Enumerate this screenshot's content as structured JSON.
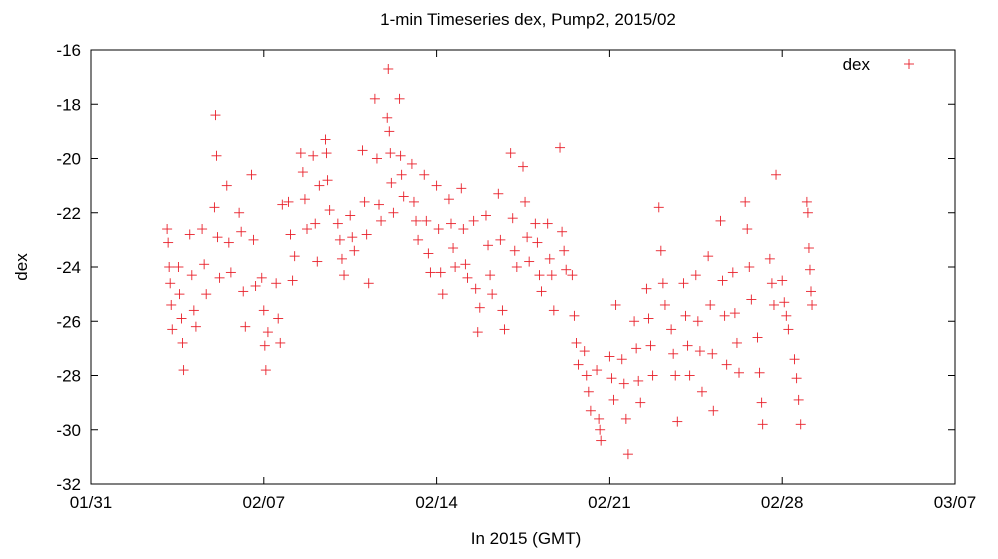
{
  "chart_data": {
    "type": "scatter",
    "title": "1-min Timeseries dex, Pump2, 2015/02",
    "xlabel": "In 2015 (GMT)",
    "ylabel": "dex",
    "x_unit": "date (2015)",
    "xlim": [
      "2015-01-31",
      "2015-03-07"
    ],
    "ylim": [
      -32,
      -16
    ],
    "x_ticks": [
      {
        "date": "2015-01-31",
        "label": "01/31"
      },
      {
        "date": "2015-02-07",
        "label": "02/07"
      },
      {
        "date": "2015-02-14",
        "label": "02/14"
      },
      {
        "date": "2015-02-21",
        "label": "02/21"
      },
      {
        "date": "2015-02-28",
        "label": "02/28"
      },
      {
        "date": "2015-03-07",
        "label": "03/07"
      }
    ],
    "y_ticks": [
      -16,
      -18,
      -20,
      -22,
      -24,
      -26,
      -28,
      -30,
      -32
    ],
    "grid": false,
    "legend": {
      "position": "top-right",
      "entries": [
        {
          "label": "dex",
          "marker": "+",
          "color": "#e8202a"
        }
      ]
    },
    "series": [
      {
        "name": "dex",
        "color": "#e8202a",
        "marker": "plus",
        "points": [
          [
            "2015-02-03 02:00",
            -22.6
          ],
          [
            "2015-02-03 03:00",
            -23.1
          ],
          [
            "2015-02-03 04:00",
            -24.0
          ],
          [
            "2015-02-03 05:00",
            -24.6
          ],
          [
            "2015-02-03 06:00",
            -25.4
          ],
          [
            "2015-02-03 07:00",
            -26.3
          ],
          [
            "2015-02-03 13:00",
            -24.0
          ],
          [
            "2015-02-03 14:00",
            -25.0
          ],
          [
            "2015-02-03 16:00",
            -25.9
          ],
          [
            "2015-02-03 17:00",
            -26.8
          ],
          [
            "2015-02-03 18:00",
            -27.8
          ],
          [
            "2015-02-04 00:00",
            -22.8
          ],
          [
            "2015-02-04 02:00",
            -24.3
          ],
          [
            "2015-02-04 04:00",
            -25.6
          ],
          [
            "2015-02-04 06:00",
            -26.2
          ],
          [
            "2015-02-04 12:00",
            -22.6
          ],
          [
            "2015-02-04 14:00",
            -23.9
          ],
          [
            "2015-02-04 16:00",
            -25.0
          ],
          [
            "2015-02-05 00:00",
            -21.8
          ],
          [
            "2015-02-05 01:00",
            -18.4
          ],
          [
            "2015-02-05 02:00",
            -19.9
          ],
          [
            "2015-02-05 03:00",
            -22.9
          ],
          [
            "2015-02-05 05:00",
            -24.4
          ],
          [
            "2015-02-05 12:00",
            -21.0
          ],
          [
            "2015-02-05 14:00",
            -23.1
          ],
          [
            "2015-02-05 16:00",
            -24.2
          ],
          [
            "2015-02-06 00:00",
            -22.0
          ],
          [
            "2015-02-06 02:00",
            -22.7
          ],
          [
            "2015-02-06 04:00",
            -24.9
          ],
          [
            "2015-02-06 06:00",
            -26.2
          ],
          [
            "2015-02-06 12:00",
            -20.6
          ],
          [
            "2015-02-06 14:00",
            -23.0
          ],
          [
            "2015-02-06 16:00",
            -24.7
          ],
          [
            "2015-02-06 22:00",
            -24.4
          ],
          [
            "2015-02-07 00:00",
            -25.6
          ],
          [
            "2015-02-07 01:00",
            -26.9
          ],
          [
            "2015-02-07 02:00",
            -27.8
          ],
          [
            "2015-02-07 04:00",
            -26.4
          ],
          [
            "2015-02-07 12:00",
            -24.6
          ],
          [
            "2015-02-07 14:00",
            -25.9
          ],
          [
            "2015-02-07 16:00",
            -26.8
          ],
          [
            "2015-02-07 18:00",
            -21.7
          ],
          [
            "2015-02-08 00:00",
            -21.6
          ],
          [
            "2015-02-08 02:00",
            -22.8
          ],
          [
            "2015-02-08 04:00",
            -24.5
          ],
          [
            "2015-02-08 06:00",
            -23.6
          ],
          [
            "2015-02-08 12:00",
            -19.8
          ],
          [
            "2015-02-08 14:00",
            -20.5
          ],
          [
            "2015-02-08 16:00",
            -21.5
          ],
          [
            "2015-02-08 18:00",
            -22.6
          ],
          [
            "2015-02-09 00:00",
            -19.9
          ],
          [
            "2015-02-09 02:00",
            -22.4
          ],
          [
            "2015-02-09 04:00",
            -23.8
          ],
          [
            "2015-02-09 06:00",
            -21.0
          ],
          [
            "2015-02-09 12:00",
            -19.3
          ],
          [
            "2015-02-09 13:00",
            -19.8
          ],
          [
            "2015-02-09 14:00",
            -20.8
          ],
          [
            "2015-02-09 16:00",
            -21.9
          ],
          [
            "2015-02-10 00:00",
            -22.4
          ],
          [
            "2015-02-10 02:00",
            -23.0
          ],
          [
            "2015-02-10 04:00",
            -23.7
          ],
          [
            "2015-02-10 06:00",
            -24.3
          ],
          [
            "2015-02-10 12:00",
            -22.1
          ],
          [
            "2015-02-10 14:00",
            -22.9
          ],
          [
            "2015-02-10 16:00",
            -23.4
          ],
          [
            "2015-02-11 00:00",
            -19.7
          ],
          [
            "2015-02-11 02:00",
            -21.6
          ],
          [
            "2015-02-11 04:00",
            -22.8
          ],
          [
            "2015-02-11 06:00",
            -24.6
          ],
          [
            "2015-02-11 12:00",
            -17.8
          ],
          [
            "2015-02-11 14:00",
            -20.0
          ],
          [
            "2015-02-11 16:00",
            -21.7
          ],
          [
            "2015-02-11 18:00",
            -22.3
          ],
          [
            "2015-02-12 00:00",
            -18.5
          ],
          [
            "2015-02-12 01:00",
            -16.7
          ],
          [
            "2015-02-12 02:00",
            -19.0
          ],
          [
            "2015-02-12 03:00",
            -19.8
          ],
          [
            "2015-02-12 04:00",
            -20.9
          ],
          [
            "2015-02-12 06:00",
            -22.0
          ],
          [
            "2015-02-12 12:00",
            -17.8
          ],
          [
            "2015-02-12 13:00",
            -19.9
          ],
          [
            "2015-02-12 14:00",
            -20.6
          ],
          [
            "2015-02-12 16:00",
            -21.4
          ],
          [
            "2015-02-13 00:00",
            -20.2
          ],
          [
            "2015-02-13 02:00",
            -21.6
          ],
          [
            "2015-02-13 04:00",
            -22.3
          ],
          [
            "2015-02-13 06:00",
            -23.0
          ],
          [
            "2015-02-13 12:00",
            -20.6
          ],
          [
            "2015-02-13 14:00",
            -22.3
          ],
          [
            "2015-02-13 16:00",
            -23.5
          ],
          [
            "2015-02-13 18:00",
            -24.2
          ],
          [
            "2015-02-14 00:00",
            -21.0
          ],
          [
            "2015-02-14 02:00",
            -22.6
          ],
          [
            "2015-02-14 04:00",
            -24.2
          ],
          [
            "2015-02-14 06:00",
            -25.0
          ],
          [
            "2015-02-14 12:00",
            -21.5
          ],
          [
            "2015-02-14 14:00",
            -22.4
          ],
          [
            "2015-02-14 16:00",
            -23.3
          ],
          [
            "2015-02-14 18:00",
            -24.0
          ],
          [
            "2015-02-15 00:00",
            -21.1
          ],
          [
            "2015-02-15 02:00",
            -22.6
          ],
          [
            "2015-02-15 04:00",
            -23.9
          ],
          [
            "2015-02-15 06:00",
            -24.4
          ],
          [
            "2015-02-15 12:00",
            -22.3
          ],
          [
            "2015-02-15 14:00",
            -24.8
          ],
          [
            "2015-02-15 16:00",
            -26.4
          ],
          [
            "2015-02-15 18:00",
            -25.5
          ],
          [
            "2015-02-16 00:00",
            -22.1
          ],
          [
            "2015-02-16 02:00",
            -23.2
          ],
          [
            "2015-02-16 04:00",
            -24.3
          ],
          [
            "2015-02-16 06:00",
            -25.0
          ],
          [
            "2015-02-16 12:00",
            -21.3
          ],
          [
            "2015-02-16 14:00",
            -23.0
          ],
          [
            "2015-02-16 16:00",
            -25.6
          ],
          [
            "2015-02-16 18:00",
            -26.3
          ],
          [
            "2015-02-17 00:00",
            -19.8
          ],
          [
            "2015-02-17 02:00",
            -22.2
          ],
          [
            "2015-02-17 04:00",
            -23.4
          ],
          [
            "2015-02-17 06:00",
            -24.0
          ],
          [
            "2015-02-17 12:00",
            -20.3
          ],
          [
            "2015-02-17 14:00",
            -21.6
          ],
          [
            "2015-02-17 16:00",
            -22.9
          ],
          [
            "2015-02-17 18:00",
            -23.8
          ],
          [
            "2015-02-18 00:00",
            -22.4
          ],
          [
            "2015-02-18 02:00",
            -23.1
          ],
          [
            "2015-02-18 04:00",
            -24.3
          ],
          [
            "2015-02-18 06:00",
            -24.9
          ],
          [
            "2015-02-18 12:00",
            -22.4
          ],
          [
            "2015-02-18 14:00",
            -23.7
          ],
          [
            "2015-02-18 16:00",
            -24.3
          ],
          [
            "2015-02-18 18:00",
            -25.6
          ],
          [
            "2015-02-19 00:00",
            -19.6
          ],
          [
            "2015-02-19 02:00",
            -22.7
          ],
          [
            "2015-02-19 04:00",
            -23.4
          ],
          [
            "2015-02-19 06:00",
            -24.1
          ],
          [
            "2015-02-19 12:00",
            -24.3
          ],
          [
            "2015-02-19 14:00",
            -25.8
          ],
          [
            "2015-02-19 16:00",
            -26.8
          ],
          [
            "2015-02-19 18:00",
            -27.6
          ],
          [
            "2015-02-20 00:00",
            -27.1
          ],
          [
            "2015-02-20 02:00",
            -28.0
          ],
          [
            "2015-02-20 04:00",
            -28.6
          ],
          [
            "2015-02-20 06:00",
            -29.3
          ],
          [
            "2015-02-20 12:00",
            -27.8
          ],
          [
            "2015-02-20 14:00",
            -29.6
          ],
          [
            "2015-02-20 15:00",
            -30.0
          ],
          [
            "2015-02-20 16:00",
            -30.4
          ],
          [
            "2015-02-21 00:00",
            -27.3
          ],
          [
            "2015-02-21 02:00",
            -28.1
          ],
          [
            "2015-02-21 04:00",
            -28.9
          ],
          [
            "2015-02-21 06:00",
            -25.4
          ],
          [
            "2015-02-21 12:00",
            -27.4
          ],
          [
            "2015-02-21 14:00",
            -28.3
          ],
          [
            "2015-02-21 16:00",
            -29.6
          ],
          [
            "2015-02-21 18:00",
            -30.9
          ],
          [
            "2015-02-22 00:00",
            -26.0
          ],
          [
            "2015-02-22 02:00",
            -27.0
          ],
          [
            "2015-02-22 04:00",
            -28.2
          ],
          [
            "2015-02-22 06:00",
            -29.0
          ],
          [
            "2015-02-22 12:00",
            -24.8
          ],
          [
            "2015-02-22 14:00",
            -25.9
          ],
          [
            "2015-02-22 16:00",
            -26.9
          ],
          [
            "2015-02-22 18:00",
            -28.0
          ],
          [
            "2015-02-23 00:00",
            -21.8
          ],
          [
            "2015-02-23 02:00",
            -23.4
          ],
          [
            "2015-02-23 04:00",
            -24.6
          ],
          [
            "2015-02-23 06:00",
            -25.4
          ],
          [
            "2015-02-23 12:00",
            -26.3
          ],
          [
            "2015-02-23 14:00",
            -27.2
          ],
          [
            "2015-02-23 16:00",
            -28.0
          ],
          [
            "2015-02-23 18:00",
            -29.7
          ],
          [
            "2015-02-24 00:00",
            -24.6
          ],
          [
            "2015-02-24 02:00",
            -25.8
          ],
          [
            "2015-02-24 04:00",
            -26.9
          ],
          [
            "2015-02-24 06:00",
            -28.0
          ],
          [
            "2015-02-24 12:00",
            -24.3
          ],
          [
            "2015-02-24 14:00",
            -26.0
          ],
          [
            "2015-02-24 16:00",
            -27.1
          ],
          [
            "2015-02-24 18:00",
            -28.6
          ],
          [
            "2015-02-25 00:00",
            -23.6
          ],
          [
            "2015-02-25 02:00",
            -25.4
          ],
          [
            "2015-02-25 04:00",
            -27.2
          ],
          [
            "2015-02-25 05:00",
            -29.3
          ],
          [
            "2015-02-25 12:00",
            -22.3
          ],
          [
            "2015-02-25 14:00",
            -24.5
          ],
          [
            "2015-02-25 16:00",
            -25.8
          ],
          [
            "2015-02-25 18:00",
            -27.6
          ],
          [
            "2015-02-26 00:00",
            -24.2
          ],
          [
            "2015-02-26 02:00",
            -25.7
          ],
          [
            "2015-02-26 04:00",
            -26.8
          ],
          [
            "2015-02-26 06:00",
            -27.9
          ],
          [
            "2015-02-26 12:00",
            -21.6
          ],
          [
            "2015-02-26 14:00",
            -22.6
          ],
          [
            "2015-02-26 16:00",
            -24.0
          ],
          [
            "2015-02-26 18:00",
            -25.2
          ],
          [
            "2015-02-27 00:00",
            -26.6
          ],
          [
            "2015-02-27 02:00",
            -27.9
          ],
          [
            "2015-02-27 04:00",
            -29.0
          ],
          [
            "2015-02-27 05:00",
            -29.8
          ],
          [
            "2015-02-27 12:00",
            -23.7
          ],
          [
            "2015-02-27 14:00",
            -24.6
          ],
          [
            "2015-02-27 16:00",
            -25.4
          ],
          [
            "2015-02-27 18:00",
            -20.6
          ],
          [
            "2015-02-28 00:00",
            -24.5
          ],
          [
            "2015-02-28 02:00",
            -25.3
          ],
          [
            "2015-02-28 04:00",
            -25.8
          ],
          [
            "2015-02-28 06:00",
            -26.3
          ],
          [
            "2015-02-28 12:00",
            -27.4
          ],
          [
            "2015-02-28 14:00",
            -28.1
          ],
          [
            "2015-02-28 16:00",
            -28.9
          ],
          [
            "2015-02-28 18:00",
            -29.8
          ],
          [
            "2015-03-01 00:00",
            -21.6
          ],
          [
            "2015-03-01 01:00",
            -22.0
          ],
          [
            "2015-03-01 02:00",
            -23.3
          ],
          [
            "2015-03-01 03:00",
            -24.1
          ],
          [
            "2015-03-01 04:00",
            -24.9
          ],
          [
            "2015-03-01 05:00",
            -25.4
          ]
        ]
      }
    ]
  }
}
